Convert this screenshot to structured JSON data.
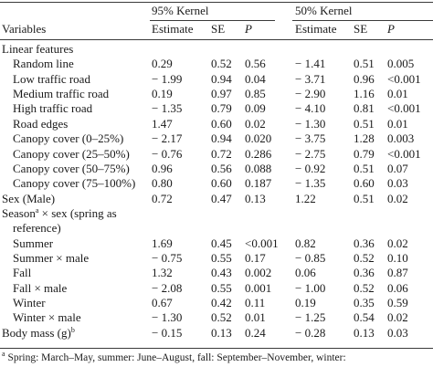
{
  "header": {
    "group1": "95% Kernel",
    "group2": "50% Kernel",
    "variables": "Variables",
    "estimate": "Estimate",
    "se": "SE",
    "p": "P"
  },
  "rows": [
    {
      "label": "Linear features",
      "indent": false
    },
    {
      "label": "Random line",
      "indent": true,
      "e1": "0.29",
      "se1": "0.52",
      "p1": "0.56",
      "e2": "− 1.41",
      "se2": "0.51",
      "p2": "0.005"
    },
    {
      "label": "Low traffic road",
      "indent": true,
      "e1": "− 1.99",
      "se1": "0.94",
      "p1": "0.04",
      "e2": "− 3.71",
      "se2": "0.96",
      "p2": "<0.001"
    },
    {
      "label": "Medium traffic road",
      "indent": true,
      "e1": "0.19",
      "se1": "0.97",
      "p1": "0.85",
      "e2": "− 2.90",
      "se2": "1.16",
      "p2": "0.01"
    },
    {
      "label": "High traffic road",
      "indent": true,
      "e1": "− 1.35",
      "se1": "0.79",
      "p1": "0.09",
      "e2": "− 4.10",
      "se2": "0.81",
      "p2": "<0.001"
    },
    {
      "label": "Road edges",
      "indent": true,
      "e1": "1.47",
      "se1": "0.60",
      "p1": "0.02",
      "e2": "− 1.30",
      "se2": "0.51",
      "p2": "0.01"
    },
    {
      "label": "Canopy cover (0–25%)",
      "indent": true,
      "e1": "− 2.17",
      "se1": "0.94",
      "p1": "0.020",
      "e2": "− 3.75",
      "se2": "1.28",
      "p2": "0.003"
    },
    {
      "label": "Canopy cover (25–50%)",
      "indent": true,
      "e1": "− 0.76",
      "se1": "0.72",
      "p1": "0.286",
      "e2": "− 2.75",
      "se2": "0.79",
      "p2": "<0.001"
    },
    {
      "label": "Canopy cover (50–75%)",
      "indent": true,
      "e1": "0.96",
      "se1": "0.56",
      "p1": "0.088",
      "e2": "− 0.92",
      "se2": "0.51",
      "p2": "0.07"
    },
    {
      "label": "Canopy cover (75–100%)",
      "indent": true,
      "e1": "0.80",
      "se1": "0.60",
      "p1": "0.187",
      "e2": "− 1.35",
      "se2": "0.60",
      "p2": "0.03"
    },
    {
      "label": "Sex (Male)",
      "indent": false,
      "e1": "0.72",
      "se1": "0.47",
      "p1": "0.13",
      "e2": "1.22",
      "se2": "0.51",
      "p2": "0.02"
    },
    {
      "label": "Season",
      "sup": "a",
      "label_rest": " × sex (spring as",
      "indent": false
    },
    {
      "label": "reference)",
      "indent": true
    },
    {
      "label": "Summer",
      "indent": true,
      "e1": "1.69",
      "se1": "0.45",
      "p1": "<0.001",
      "e2": "0.82",
      "se2": "0.36",
      "p2": "0.02"
    },
    {
      "label": "Summer × male",
      "indent": true,
      "e1": "− 0.75",
      "se1": "0.55",
      "p1": "0.17",
      "e2": "− 0.85",
      "se2": "0.52",
      "p2": "0.10"
    },
    {
      "label": "Fall",
      "indent": true,
      "e1": "1.32",
      "se1": "0.43",
      "p1": "0.002",
      "e2": "0.06",
      "se2": "0.36",
      "p2": "0.87"
    },
    {
      "label": "Fall × male",
      "indent": true,
      "e1": "− 2.08",
      "se1": "0.55",
      "p1": "0.001",
      "e2": "− 1.00",
      "se2": "0.52",
      "p2": "0.06"
    },
    {
      "label": "Winter",
      "indent": true,
      "e1": "0.67",
      "se1": "0.42",
      "p1": "0.11",
      "e2": "0.19",
      "se2": "0.35",
      "p2": "0.59"
    },
    {
      "label": "Winter × male",
      "indent": true,
      "e1": "− 1.30",
      "se1": "0.52",
      "p1": "0.01",
      "e2": "− 1.25",
      "se2": "0.54",
      "p2": "0.02"
    },
    {
      "label": "Body mass (g)",
      "sup": "b",
      "indent": false,
      "e1": "− 0.15",
      "se1": "0.13",
      "p1": "0.24",
      "e2": "− 0.28",
      "se2": "0.13",
      "p2": "0.03"
    }
  ],
  "footnote": {
    "mark": "a",
    "text": " Spring: March–May, summer: June–August, fall: September–November, winter:"
  }
}
